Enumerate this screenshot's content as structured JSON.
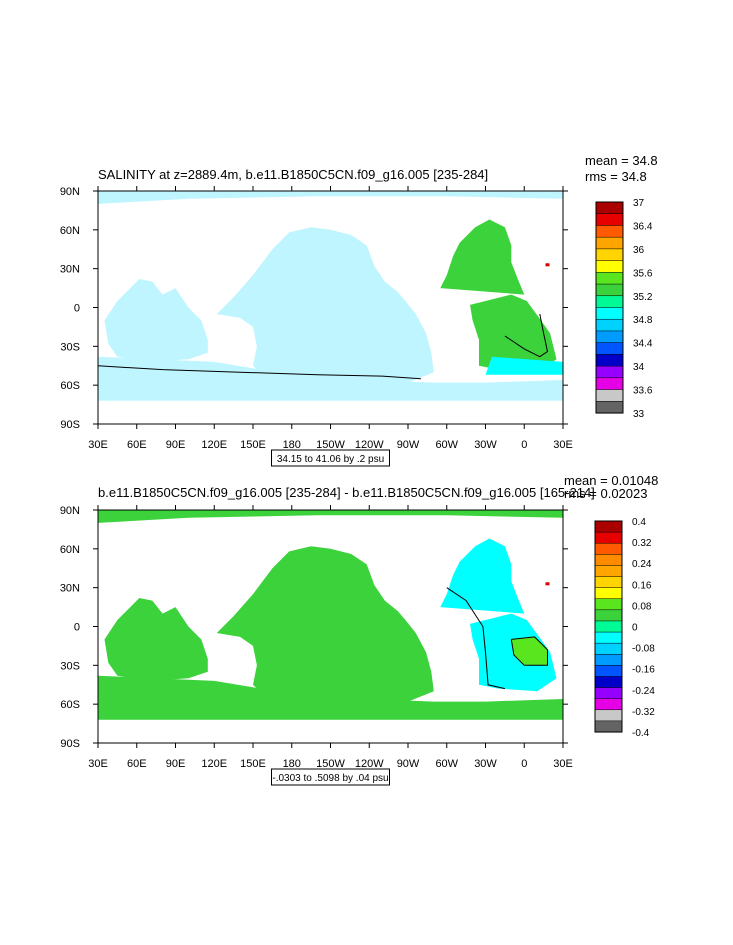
{
  "colors": {
    "water": "#00ffff",
    "green": "#3cd23c",
    "bright_green": "#5ae61e",
    "light_cyan": "#bff5ff",
    "red": "#d20000"
  },
  "chart_data": [
    {
      "type": "heatmap",
      "title": "SALINITY at z=2889.4m, b.e11.B1850C5CN.f09_g16.005 [235-284]",
      "stats": {
        "mean": "mean = 34.8",
        "rms": "rms = 34.8"
      },
      "x_tick_labels": [
        "30E",
        "60E",
        "90E",
        "120E",
        "150E",
        "180",
        "150W",
        "120W",
        "90W",
        "60W",
        "30W",
        "0",
        "30E"
      ],
      "y_tick_labels": [
        "90N",
        "60N",
        "30N",
        "0",
        "30S",
        "60S",
        "90S"
      ],
      "xlim_deg": [
        30,
        390
      ],
      "ylim_deg": [
        -90,
        90
      ],
      "contour_info": "34.15 to 41.06 by .2 psu",
      "colorbar": {
        "labels": [
          "37",
          "36.4",
          "36",
          "35.6",
          "35.2",
          "34.8",
          "34.4",
          "34",
          "33.6",
          "33"
        ],
        "colors": [
          "#aa0000",
          "#e60000",
          "#ff5a00",
          "#ffa500",
          "#ffd400",
          "#ffff00",
          "#5ae61e",
          "#3cd23c",
          "#00fa96",
          "#00ffff",
          "#00d2ff",
          "#009bff",
          "#0055ff",
          "#0000c8",
          "#9600ff",
          "#e600e6",
          "#c8c8c8",
          "#646464"
        ]
      }
    },
    {
      "type": "heatmap",
      "title": "b.e11.B1850C5CN.f09_g16.005 [235-284] - b.e11.B1850C5CN.f09_g16.005 [165-214]",
      "stats": {
        "mean": "mean = 0.01048",
        "rms": "rms = 0.02023"
      },
      "x_tick_labels": [
        "30E",
        "60E",
        "90E",
        "120E",
        "150E",
        "180",
        "150W",
        "120W",
        "90W",
        "60W",
        "30W",
        "0",
        "30E"
      ],
      "y_tick_labels": [
        "90N",
        "60N",
        "30N",
        "0",
        "30S",
        "60S",
        "90S"
      ],
      "xlim_deg": [
        30,
        390
      ],
      "ylim_deg": [
        -90,
        90
      ],
      "contour_info": "-.0303 to .5098 by .04 psu",
      "colorbar": {
        "labels": [
          "0.4",
          "0.32",
          "0.24",
          "0.16",
          "0.08",
          "0",
          "-0.08",
          "-0.16",
          "-0.24",
          "-0.32",
          "-0.4"
        ],
        "colors": [
          "#aa0000",
          "#e60000",
          "#ff5a00",
          "#ff8c00",
          "#ffa500",
          "#ffd400",
          "#ffff00",
          "#5ae61e",
          "#3cd23c",
          "#00fa96",
          "#00ffff",
          "#00d2ff",
          "#009bff",
          "#0055ff",
          "#0000c8",
          "#9600ff",
          "#e600e6",
          "#c8c8c8",
          "#646464"
        ]
      }
    }
  ]
}
